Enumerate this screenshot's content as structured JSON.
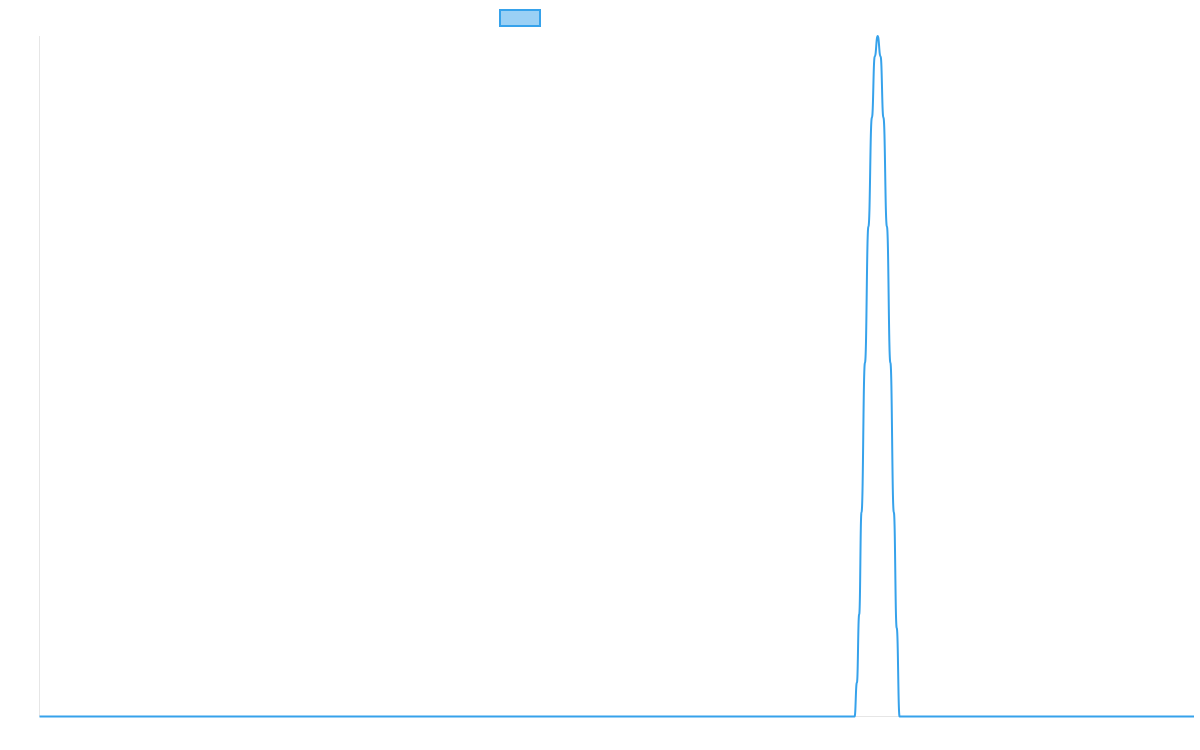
{
  "chart_data": {
    "type": "line",
    "title": "",
    "xlabel": "",
    "ylabel": "",
    "x_range": [
      0,
      100
    ],
    "y_range": [
      0,
      1
    ],
    "grid": false,
    "legend": {
      "placement": "top-center",
      "entries": [
        {
          "label": "",
          "swatch": "filled-rectangle"
        }
      ]
    },
    "series": [
      {
        "color": "#36a2eb",
        "fill_color": "#9ad0f5",
        "baseline": 0,
        "peak_x": 72.6,
        "peak_y": 1,
        "nonzero_from_x": 70.6,
        "nonzero_to_x": 74.5,
        "points": [
          [
            0,
            0
          ],
          [
            70.6,
            0
          ],
          [
            70.8,
            0.05
          ],
          [
            71.0,
            0.15
          ],
          [
            71.2,
            0.3
          ],
          [
            71.5,
            0.52
          ],
          [
            71.8,
            0.72
          ],
          [
            72.1,
            0.88
          ],
          [
            72.35,
            0.97
          ],
          [
            72.6,
            1.0
          ],
          [
            72.85,
            0.97
          ],
          [
            73.1,
            0.88
          ],
          [
            73.4,
            0.72
          ],
          [
            73.7,
            0.52
          ],
          [
            74.0,
            0.3
          ],
          [
            74.25,
            0.13
          ],
          [
            74.5,
            0
          ],
          [
            100,
            0
          ]
        ]
      }
    ]
  }
}
